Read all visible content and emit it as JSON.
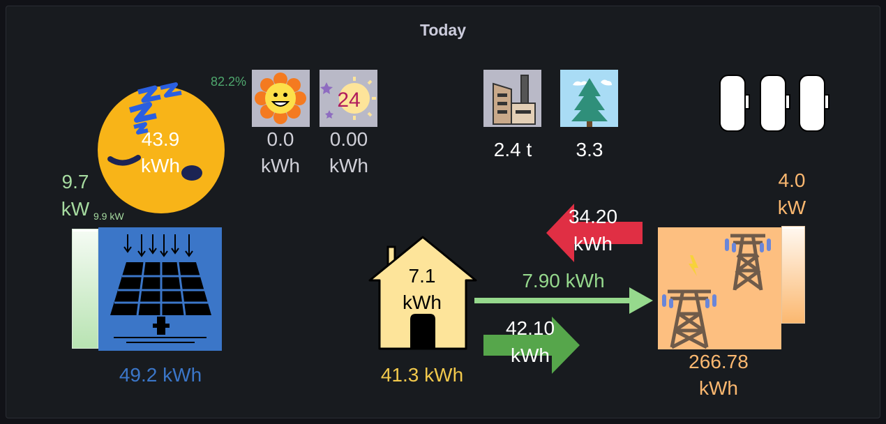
{
  "panel": {
    "title": "Today"
  },
  "solar": {
    "efficiency": "82.2%",
    "power_value": "9.7",
    "power_unit": "kW",
    "power_peak": "9.9 kW",
    "energy": "49.2 kWh",
    "night_value": "43.9",
    "night_unit": "kWh",
    "gauge_level": 0.98
  },
  "indicators": {
    "sun_value": "0.0",
    "sun_unit": "kWh",
    "daynight_value": "0.00",
    "daynight_unit": "kWh",
    "daynight_number": "24",
    "co2_value": "2.4 t",
    "trees_value": "3.3"
  },
  "house": {
    "value": "7.1",
    "unit": "kWh",
    "total": "41.3 kWh"
  },
  "flows": {
    "grid_to_house_value": "34.20",
    "grid_to_house_unit": "kWh",
    "solar_to_grid": "7.90 kWh",
    "export_value": "42.10",
    "export_unit": "kWh"
  },
  "grid": {
    "power_value": "4.0",
    "power_unit": "kW",
    "energy_value": "266.78",
    "energy_unit": "kWh",
    "gauge_level": 0.98
  },
  "colors": {
    "solar": "#3b76c8",
    "solar_power": "#a6dba0",
    "house": "#f2c94c",
    "grid": "#fbb870",
    "arrow_red": "#e02f44",
    "arrow_light_green": "#96d98d",
    "arrow_green": "#56a64b",
    "efficiency": "#4fa86e"
  }
}
